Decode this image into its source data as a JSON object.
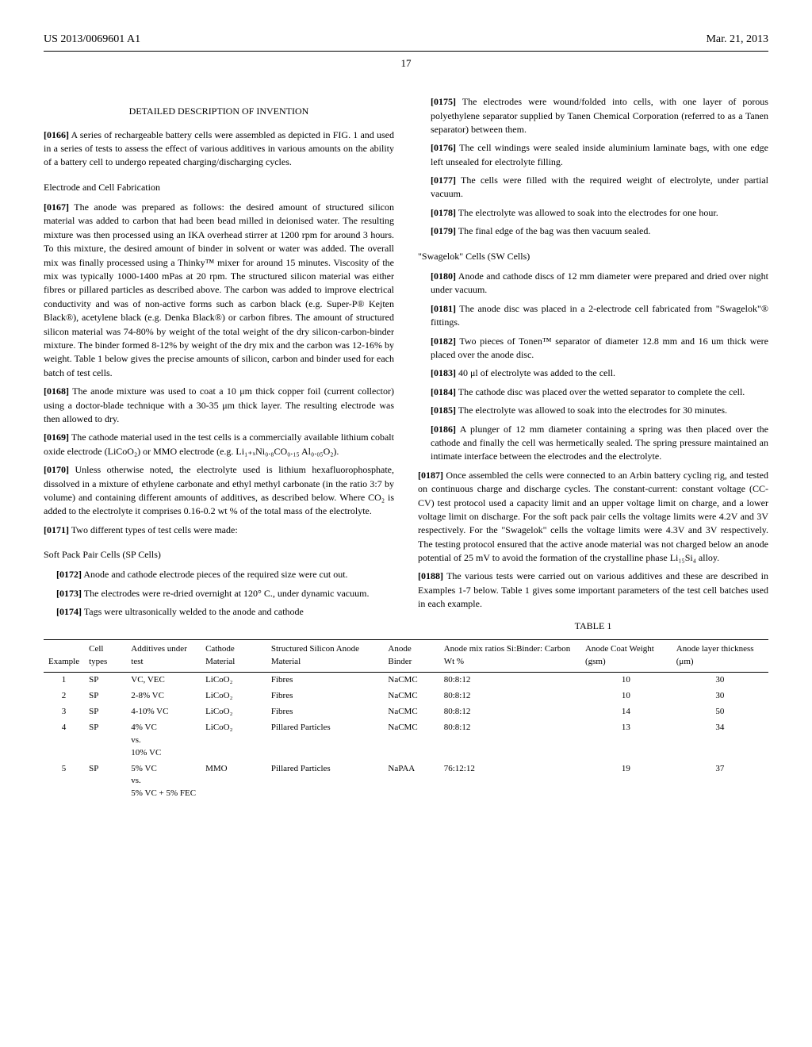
{
  "header": {
    "patent_number": "US 2013/0069601 A1",
    "date": "Mar. 21, 2013",
    "page_number": "17"
  },
  "left_column": {
    "section_title": "DETAILED DESCRIPTION OF INVENTION",
    "p0166_num": "[0166]",
    "p0166_text": "A series of rechargeable battery cells were assembled as depicted in FIG. 1 and used in a series of tests to assess the effect of various additives in various amounts on the ability of a battery cell to undergo repeated charging/discharging cycles.",
    "sub1": "Electrode and Cell Fabrication",
    "p0167_num": "[0167]",
    "p0167_text": "The anode was prepared as follows: the desired amount of structured silicon material was added to carbon that had been bead milled in deionised water. The resulting mixture was then processed using an IKA overhead stirrer at 1200 rpm for around 3 hours. To this mixture, the desired amount of binder in solvent or water was added. The overall mix was finally processed using a Thinky™ mixer for around 15 minutes. Viscosity of the mix was typically 1000-1400 mPas at 20 rpm. The structured silicon material was either fibres or pillared particles as described above. The carbon was added to improve electrical conductivity and was of non-active forms such as carbon black (e.g. Super-P® Kejten Black®), acetylene black (e.g. Denka Black®) or carbon fibres. The amount of structured silicon material was 74-80% by weight of the total weight of the dry silicon-carbon-binder mixture. The binder formed 8-12% by weight of the dry mix and the carbon was 12-16% by weight. Table 1 below gives the precise amounts of silicon, carbon and binder used for each batch of test cells.",
    "p0168_num": "[0168]",
    "p0168_text": "The anode mixture was used to coat a 10 μm thick copper foil (current collector) using a doctor-blade technique with a 30-35 μm thick layer. The resulting electrode was then allowed to dry.",
    "p0169_num": "[0169]",
    "p0169_text": "The cathode material used in the test cells is a commercially available lithium cobalt oxide electrode (LiCoO₂) or MMO electrode (e.g. Li₁₊ₓNi₀.₈CO₀.₁₅ Al₀.₀₅O₂).",
    "p0170_num": "[0170]",
    "p0170_text": "Unless otherwise noted, the electrolyte used is lithium hexafluorophosphate, dissolved in a mixture of ethylene carbonate and ethyl methyl carbonate (in the ratio 3:7 by volume) and containing different amounts of additives, as described below. Where CO₂ is added to the electrolyte it comprises 0.16-0.2 wt % of the total mass of the electrolyte.",
    "p0171_num": "[0171]",
    "p0171_text": "Two different types of test cells were made:",
    "sub2": "Soft Pack Pair Cells (SP Cells)",
    "p0172_num": "[0172]",
    "p0172_text": "Anode and cathode electrode pieces of the required size were cut out.",
    "p0173_num": "[0173]",
    "p0173_text": "The electrodes were re-dried overnight at 120° C., under dynamic vacuum.",
    "p0174_num": "[0174]",
    "p0174_text": "Tags were ultrasonically welded to the anode and cathode"
  },
  "right_column": {
    "p0175_num": "[0175]",
    "p0175_text": "The electrodes were wound/folded into cells, with one layer of porous polyethylene separator supplied by Tanen Chemical Corporation (referred to as a Tanen separator) between them.",
    "p0176_num": "[0176]",
    "p0176_text": "The cell windings were sealed inside aluminium laminate bags, with one edge left unsealed for electrolyte filling.",
    "p0177_num": "[0177]",
    "p0177_text": "The cells were filled with the required weight of electrolyte, under partial vacuum.",
    "p0178_num": "[0178]",
    "p0178_text": "The electrolyte was allowed to soak into the electrodes for one hour.",
    "p0179_num": "[0179]",
    "p0179_text": "The final edge of the bag was then vacuum sealed.",
    "sub3": "\"Swagelok\" Cells (SW Cells)",
    "p0180_num": "[0180]",
    "p0180_text": "Anode and cathode discs of 12 mm diameter were prepared and dried over night under vacuum.",
    "p0181_num": "[0181]",
    "p0181_text": "The anode disc was placed in a 2-electrode cell fabricated from \"Swagelok\"® fittings.",
    "p0182_num": "[0182]",
    "p0182_text": "Two pieces of Tonen™ separator of diameter 12.8 mm and 16 um thick were placed over the anode disc.",
    "p0183_num": "[0183]",
    "p0183_text": "40 μl of electrolyte was added to the cell.",
    "p0184_num": "[0184]",
    "p0184_text": "The cathode disc was placed over the wetted separator to complete the cell.",
    "p0185_num": "[0185]",
    "p0185_text": "The electrolyte was allowed to soak into the electrodes for 30 minutes.",
    "p0186_num": "[0186]",
    "p0186_text": "A plunger of 12 mm diameter containing a spring was then placed over the cathode and finally the cell was hermetically sealed. The spring pressure maintained an intimate interface between the electrodes and the electrolyte.",
    "p0187_num": "[0187]",
    "p0187_text": "Once assembled the cells were connected to an Arbin battery cycling rig, and tested on continuous charge and discharge cycles. The constant-current: constant voltage (CC-CV) test protocol used a capacity limit and an upper voltage limit on charge, and a lower voltage limit on discharge. For the soft pack pair cells the voltage limits were 4.2V and 3V respectively. For the \"Swagelok\" cells the voltage limits were 4.3V and 3V respectively. The testing protocol ensured that the active anode material was not charged below an anode potential of 25 mV to avoid the formation of the crystalline phase Li₁₅Si₄ alloy.",
    "p0188_num": "[0188]",
    "p0188_text": "The various tests were carried out on various additives and these are described in Examples 1-7 below. Table 1 gives some important parameters of the test cell batches used in each example."
  },
  "table": {
    "caption": "TABLE 1",
    "headers": {
      "example": "Example",
      "cell_types": "Cell types",
      "additives": "Additives under test",
      "cathode": "Cathode Material",
      "anode_material": "Structured Silicon Anode Material",
      "binder": "Anode Binder",
      "ratios": "Anode mix ratios Si:Binder: Carbon Wt %",
      "coat_weight": "Anode Coat Weight (gsm)",
      "thickness": "Anode layer thickness (μm)"
    },
    "rows": [
      {
        "example": "1",
        "cell": "SP",
        "additives": "VC, VEC",
        "cathode": "LiCoO₂",
        "anode": "Fibres",
        "binder": "NaCMC",
        "ratios": "80:8:12",
        "coat": "10",
        "thick": "30"
      },
      {
        "example": "2",
        "cell": "SP",
        "additives": "2-8% VC",
        "cathode": "LiCoO₂",
        "anode": "Fibres",
        "binder": "NaCMC",
        "ratios": "80:8:12",
        "coat": "10",
        "thick": "30"
      },
      {
        "example": "3",
        "cell": "SP",
        "additives": "4-10% VC",
        "cathode": "LiCoO₂",
        "anode": "Fibres",
        "binder": "NaCMC",
        "ratios": "80:8:12",
        "coat": "14",
        "thick": "50"
      },
      {
        "example": "4",
        "cell": "SP",
        "additives": "4% VC\nvs.\n10% VC",
        "cathode": "LiCoO₂",
        "anode": "Pillared Particles",
        "binder": "NaCMC",
        "ratios": "80:8:12",
        "coat": "13",
        "thick": "34"
      },
      {
        "example": "5",
        "cell": "SP",
        "additives": "5% VC\nvs.\n5% VC + 5% FEC",
        "cathode": "MMO",
        "anode": "Pillared Particles",
        "binder": "NaPAA",
        "ratios": "76:12:12",
        "coat": "19",
        "thick": "37"
      }
    ]
  }
}
